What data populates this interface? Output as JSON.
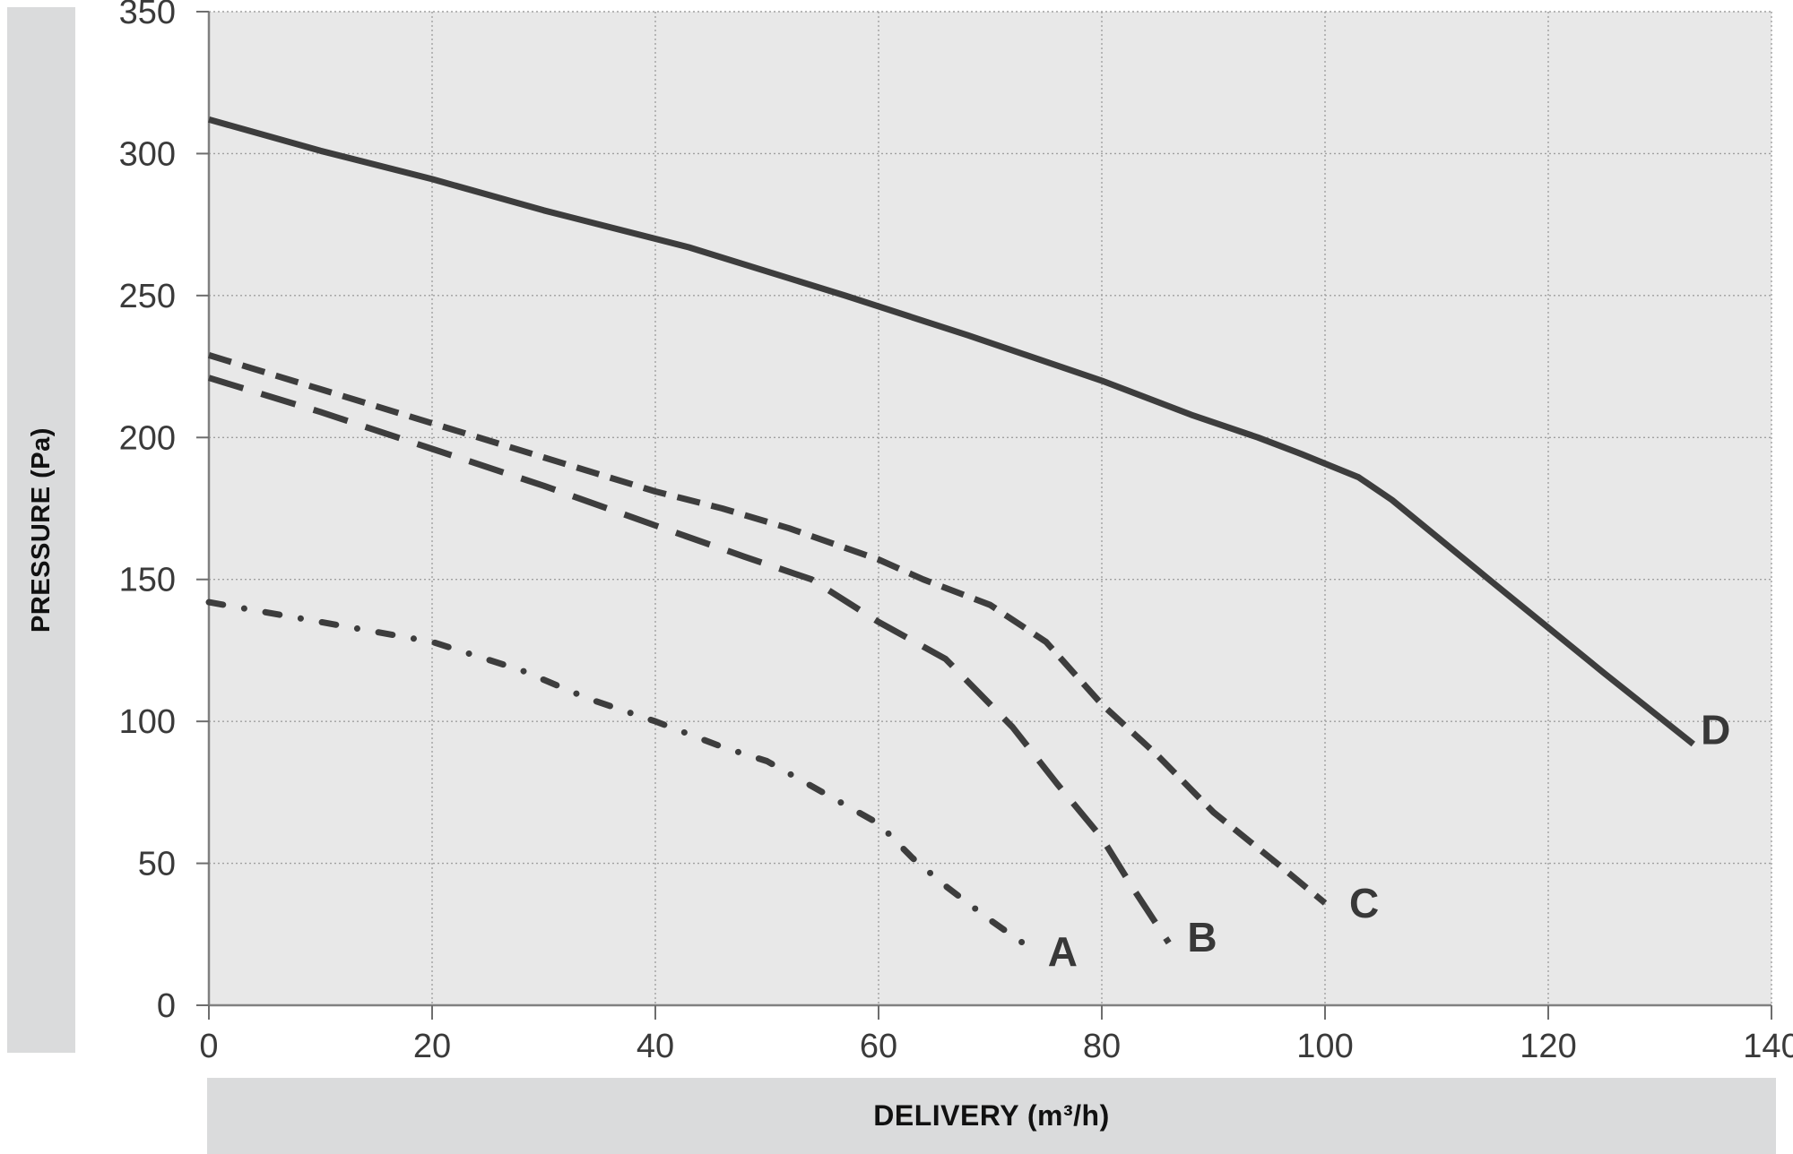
{
  "left_band": {
    "title": "PRESSURE (Pa)"
  },
  "bottom_band": {
    "title": "DELIVERY (m³/h)"
  },
  "colors": {
    "page_bg": "#ffffff",
    "plot_bg": "#e8e8e8",
    "band_bg": "#dadbdc",
    "grid": "#a0a0a0",
    "axis": "#808080",
    "tick": "#6e6e6e",
    "tick_text": "#3a3a3a",
    "curve": "#3d3d3d",
    "curve_label_text": "#383838"
  },
  "chart_data": {
    "type": "line",
    "title": "",
    "xlabel": "DELIVERY (m³/h)",
    "ylabel": "PRESSURE (Pa)",
    "grid": "dotted",
    "legend": "inline-curve-labels",
    "x_axis": {
      "min": 0,
      "max": 140,
      "ticks": [
        0,
        20,
        40,
        60,
        80,
        100,
        120,
        140
      ]
    },
    "y_axis": {
      "min": 0,
      "max": 350,
      "ticks": [
        0,
        50,
        100,
        150,
        200,
        250,
        300,
        350
      ]
    },
    "series": [
      {
        "name": "A",
        "style": "dashdot",
        "label_at": [
          76.5,
          19
        ],
        "points": [
          [
            0,
            142
          ],
          [
            10,
            135
          ],
          [
            20,
            128
          ],
          [
            28,
            118
          ],
          [
            34,
            108
          ],
          [
            40,
            100
          ],
          [
            46,
            91
          ],
          [
            50,
            86
          ],
          [
            55,
            75
          ],
          [
            60,
            64
          ],
          [
            63,
            52
          ],
          [
            66,
            42
          ],
          [
            70,
            30
          ],
          [
            74,
            19
          ]
        ]
      },
      {
        "name": "B",
        "style": "longdash",
        "label_at": [
          89,
          24
        ],
        "points": [
          [
            0,
            221
          ],
          [
            10,
            209
          ],
          [
            20,
            196
          ],
          [
            30,
            183
          ],
          [
            40,
            169
          ],
          [
            48,
            158
          ],
          [
            54,
            150
          ],
          [
            60,
            135
          ],
          [
            66,
            122
          ],
          [
            72,
            98
          ],
          [
            76,
            78
          ],
          [
            80,
            59
          ],
          [
            83,
            40
          ],
          [
            86,
            22
          ]
        ]
      },
      {
        "name": "C",
        "style": "shortdash",
        "label_at": [
          103.5,
          36
        ],
        "points": [
          [
            0,
            229
          ],
          [
            10,
            217
          ],
          [
            20,
            205
          ],
          [
            30,
            193
          ],
          [
            40,
            181
          ],
          [
            46,
            175
          ],
          [
            52,
            168
          ],
          [
            60,
            157
          ],
          [
            64,
            150
          ],
          [
            70,
            141
          ],
          [
            75,
            128
          ],
          [
            80,
            106
          ],
          [
            85,
            88
          ],
          [
            90,
            68
          ],
          [
            96,
            49
          ],
          [
            100,
            36
          ]
        ]
      },
      {
        "name": "D",
        "style": "solid",
        "label_at": [
          135,
          97
        ],
        "points": [
          [
            0,
            312
          ],
          [
            10,
            301
          ],
          [
            20,
            291
          ],
          [
            30,
            280
          ],
          [
            43,
            267
          ],
          [
            57,
            250
          ],
          [
            68,
            236
          ],
          [
            80,
            220
          ],
          [
            88,
            208
          ],
          [
            94,
            200
          ],
          [
            98,
            194
          ],
          [
            103,
            186
          ],
          [
            106,
            178
          ],
          [
            115,
            149
          ],
          [
            125,
            117
          ],
          [
            133,
            92
          ]
        ]
      }
    ]
  }
}
